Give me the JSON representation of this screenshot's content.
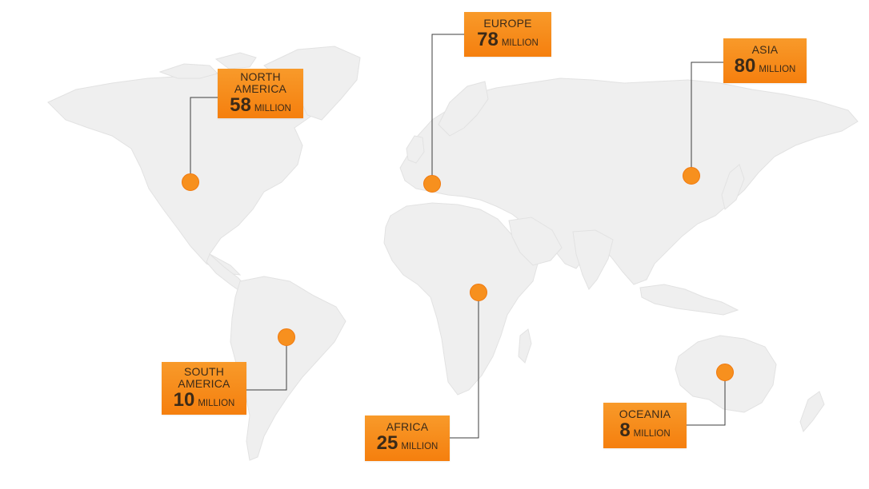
{
  "map": {
    "accent_color": "#f7901e",
    "land_color": "#efefef",
    "line_color": "#3d3d3d"
  },
  "regions": [
    {
      "id": "north-america",
      "name": "NORTH AMERICA",
      "value": "58",
      "unit": "MILLION"
    },
    {
      "id": "europe",
      "name": "EUROPE",
      "value": "78",
      "unit": "MILLION"
    },
    {
      "id": "asia",
      "name": "ASIA",
      "value": "80",
      "unit": "MILLION"
    },
    {
      "id": "south-america",
      "name": "SOUTH AMERICA",
      "value": "10",
      "unit": "MILLION"
    },
    {
      "id": "africa",
      "name": "AFRICA",
      "value": "25",
      "unit": "MILLION"
    },
    {
      "id": "oceania",
      "name": "OCEANIA",
      "value": "8",
      "unit": "MILLION"
    }
  ]
}
